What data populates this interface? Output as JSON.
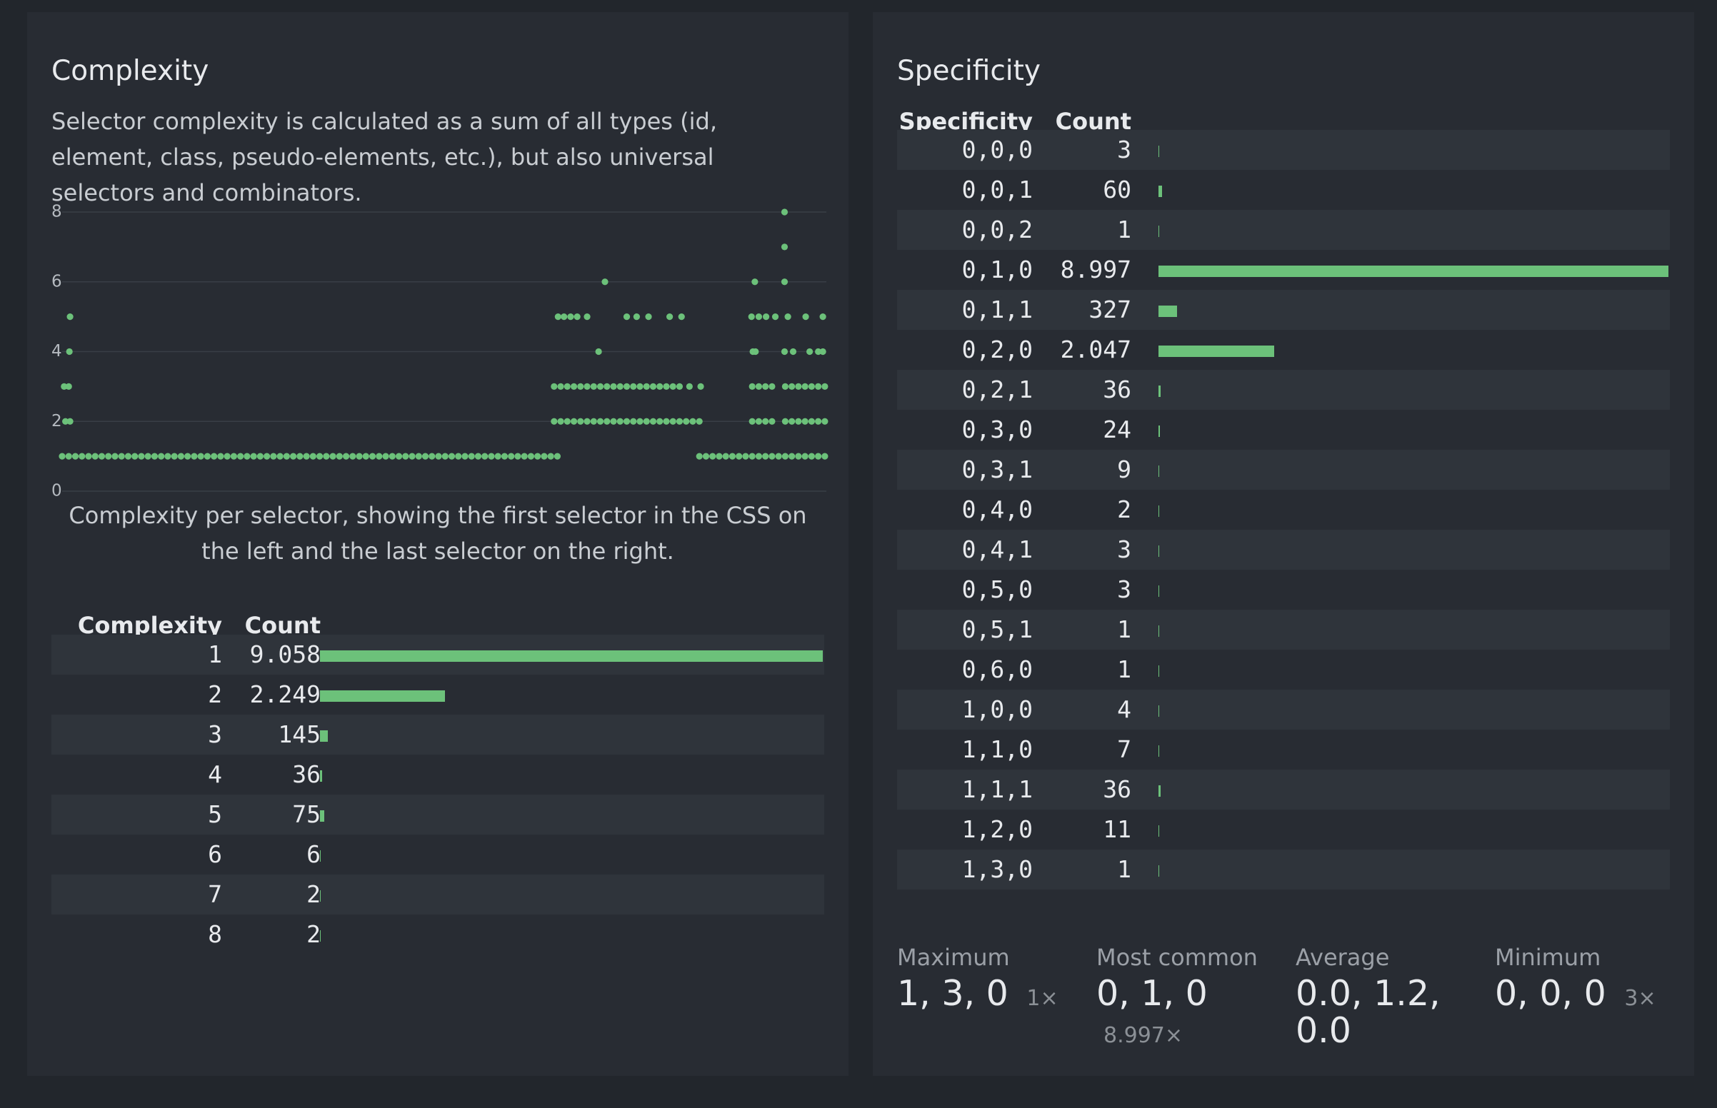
{
  "complexity": {
    "title": "Complexity",
    "description": "Selector complexity is calculated as a sum of all types (id, element, class, pseudo-elements, etc.), but also universal selectors and combinators.",
    "chart": {
      "type": "scatter",
      "xlim": [
        0,
        11573
      ],
      "ylim": [
        0,
        8
      ],
      "yticks": [
        0,
        2,
        4,
        6,
        8
      ],
      "grid": true,
      "color": "#6cc17a",
      "points": [
        [
          0,
          1
        ],
        [
          100,
          1
        ],
        [
          200,
          1
        ],
        [
          300,
          1
        ],
        [
          400,
          1
        ],
        [
          500,
          1
        ],
        [
          600,
          1
        ],
        [
          700,
          1
        ],
        [
          800,
          1
        ],
        [
          900,
          1
        ],
        [
          1000,
          1
        ],
        [
          1100,
          1
        ],
        [
          1200,
          1
        ],
        [
          1300,
          1
        ],
        [
          1400,
          1
        ],
        [
          1500,
          1
        ],
        [
          1600,
          1
        ],
        [
          1700,
          1
        ],
        [
          1800,
          1
        ],
        [
          1900,
          1
        ],
        [
          2000,
          1
        ],
        [
          2100,
          1
        ],
        [
          2200,
          1
        ],
        [
          2300,
          1
        ],
        [
          2400,
          1
        ],
        [
          2500,
          1
        ],
        [
          2600,
          1
        ],
        [
          2700,
          1
        ],
        [
          2800,
          1
        ],
        [
          2900,
          1
        ],
        [
          3000,
          1
        ],
        [
          3100,
          1
        ],
        [
          3200,
          1
        ],
        [
          3300,
          1
        ],
        [
          3400,
          1
        ],
        [
          3500,
          1
        ],
        [
          3600,
          1
        ],
        [
          3700,
          1
        ],
        [
          3800,
          1
        ],
        [
          3900,
          1
        ],
        [
          4000,
          1
        ],
        [
          4100,
          1
        ],
        [
          4200,
          1
        ],
        [
          4300,
          1
        ],
        [
          4400,
          1
        ],
        [
          4500,
          1
        ],
        [
          4600,
          1
        ],
        [
          4700,
          1
        ],
        [
          4800,
          1
        ],
        [
          4900,
          1
        ],
        [
          5000,
          1
        ],
        [
          5100,
          1
        ],
        [
          5200,
          1
        ],
        [
          5300,
          1
        ],
        [
          5400,
          1
        ],
        [
          5500,
          1
        ],
        [
          5600,
          1
        ],
        [
          5700,
          1
        ],
        [
          5800,
          1
        ],
        [
          5900,
          1
        ],
        [
          6000,
          1
        ],
        [
          6100,
          1
        ],
        [
          6200,
          1
        ],
        [
          6300,
          1
        ],
        [
          6400,
          1
        ],
        [
          6500,
          1
        ],
        [
          6600,
          1
        ],
        [
          6700,
          1
        ],
        [
          6800,
          1
        ],
        [
          6900,
          1
        ],
        [
          7000,
          1
        ],
        [
          7100,
          1
        ],
        [
          7200,
          1
        ],
        [
          7300,
          1
        ],
        [
          7400,
          1
        ],
        [
          7500,
          1
        ],
        [
          9650,
          1
        ],
        [
          9750,
          1
        ],
        [
          9850,
          1
        ],
        [
          9950,
          1
        ],
        [
          10050,
          1
        ],
        [
          10150,
          1
        ],
        [
          10250,
          1
        ],
        [
          10350,
          1
        ],
        [
          10450,
          1
        ],
        [
          10550,
          1
        ],
        [
          10650,
          1
        ],
        [
          10750,
          1
        ],
        [
          10850,
          1
        ],
        [
          10950,
          1
        ],
        [
          11050,
          1
        ],
        [
          11150,
          1
        ],
        [
          11250,
          1
        ],
        [
          11350,
          1
        ],
        [
          11450,
          1
        ],
        [
          11550,
          1
        ],
        [
          7450,
          2
        ],
        [
          7550,
          2
        ],
        [
          7650,
          2
        ],
        [
          7750,
          2
        ],
        [
          7850,
          2
        ],
        [
          7950,
          2
        ],
        [
          8050,
          2
        ],
        [
          8150,
          2
        ],
        [
          8250,
          2
        ],
        [
          8350,
          2
        ],
        [
          8450,
          2
        ],
        [
          8550,
          2
        ],
        [
          8650,
          2
        ],
        [
          8750,
          2
        ],
        [
          8850,
          2
        ],
        [
          8950,
          2
        ],
        [
          9050,
          2
        ],
        [
          9150,
          2
        ],
        [
          9250,
          2
        ],
        [
          9350,
          2
        ],
        [
          9450,
          2
        ],
        [
          9550,
          2
        ],
        [
          9650,
          2
        ],
        [
          10450,
          2
        ],
        [
          10550,
          2
        ],
        [
          10650,
          2
        ],
        [
          10750,
          2
        ],
        [
          10950,
          2
        ],
        [
          11050,
          2
        ],
        [
          11150,
          2
        ],
        [
          11250,
          2
        ],
        [
          11350,
          2
        ],
        [
          11450,
          2
        ],
        [
          11550,
          2
        ],
        [
          7450,
          3
        ],
        [
          7550,
          3
        ],
        [
          7650,
          3
        ],
        [
          7750,
          3
        ],
        [
          7850,
          3
        ],
        [
          7950,
          3
        ],
        [
          8050,
          3
        ],
        [
          8150,
          3
        ],
        [
          8250,
          3
        ],
        [
          8350,
          3
        ],
        [
          8450,
          3
        ],
        [
          8550,
          3
        ],
        [
          8650,
          3
        ],
        [
          8750,
          3
        ],
        [
          8850,
          3
        ],
        [
          8950,
          3
        ],
        [
          9050,
          3
        ],
        [
          9150,
          3
        ],
        [
          9250,
          3
        ],
        [
          9350,
          3
        ],
        [
          9500,
          3
        ],
        [
          9670,
          3
        ],
        [
          10450,
          3
        ],
        [
          10550,
          3
        ],
        [
          10650,
          3
        ],
        [
          10750,
          3
        ],
        [
          10950,
          3
        ],
        [
          11050,
          3
        ],
        [
          11150,
          3
        ],
        [
          11250,
          3
        ],
        [
          11350,
          3
        ],
        [
          11450,
          3
        ],
        [
          11550,
          3
        ],
        [
          50,
          2
        ],
        [
          120,
          2
        ],
        [
          30,
          3
        ],
        [
          100,
          3
        ],
        [
          110,
          4
        ],
        [
          120,
          5
        ],
        [
          8124,
          4
        ],
        [
          10460,
          4
        ],
        [
          10500,
          4
        ],
        [
          10940,
          4
        ],
        [
          11070,
          4
        ],
        [
          11320,
          4
        ],
        [
          11450,
          4
        ],
        [
          11520,
          4
        ],
        [
          7510,
          5
        ],
        [
          7600,
          5
        ],
        [
          7700,
          5
        ],
        [
          7800,
          5
        ],
        [
          7950,
          5
        ],
        [
          8550,
          5
        ],
        [
          8700,
          5
        ],
        [
          8880,
          5
        ],
        [
          9200,
          5
        ],
        [
          9380,
          5
        ],
        [
          10440,
          5
        ],
        [
          10550,
          5
        ],
        [
          10660,
          5
        ],
        [
          10800,
          5
        ],
        [
          10990,
          5
        ],
        [
          11260,
          5
        ],
        [
          11520,
          5
        ],
        [
          8220,
          6
        ],
        [
          10490,
          6
        ],
        [
          10940,
          6
        ],
        [
          10940,
          7
        ],
        [
          10940,
          8
        ]
      ]
    },
    "caption": "Complexity per selector, showing the first selector in the CSS on the left and the last selector on the right.",
    "table": {
      "headers": [
        "Complexity",
        "Count"
      ],
      "color": "#6cc17a",
      "categories": [
        1,
        2,
        3,
        4,
        5,
        6,
        7,
        8
      ],
      "values": [
        9058,
        2249,
        145,
        36,
        75,
        6,
        2,
        2
      ],
      "value_labels": [
        "9.058",
        "2.249",
        "145",
        "36",
        "75",
        "6",
        "2",
        "2"
      ]
    }
  },
  "specificity": {
    "title": "Specificity",
    "table": {
      "headers": [
        "Specificity",
        "Count"
      ],
      "color": "#6cc17a",
      "categories": [
        "0,0,0",
        "0,0,1",
        "0,0,2",
        "0,1,0",
        "0,1,1",
        "0,2,0",
        "0,2,1",
        "0,3,0",
        "0,3,1",
        "0,4,0",
        "0,4,1",
        "0,5,0",
        "0,5,1",
        "0,6,0",
        "1,0,0",
        "1,1,0",
        "1,1,1",
        "1,2,0",
        "1,3,0"
      ],
      "values": [
        3,
        60,
        1,
        8997,
        327,
        2047,
        36,
        24,
        9,
        2,
        3,
        3,
        1,
        1,
        4,
        7,
        36,
        11,
        1
      ],
      "value_labels": [
        "3",
        "60",
        "1",
        "8.997",
        "327",
        "2.047",
        "36",
        "24",
        "9",
        "2",
        "3",
        "3",
        "1",
        "1",
        "4",
        "7",
        "36",
        "11",
        "1"
      ]
    },
    "stats": [
      {
        "label": "Maximum",
        "value": "1, 3, 0",
        "count": "1×"
      },
      {
        "label": "Most common",
        "value": "0, 1, 0",
        "count": "8.997×"
      },
      {
        "label": "Average",
        "value": "0.0, 1.2, 0.0"
      },
      {
        "label": "Minimum",
        "value": "0, 0, 0",
        "count": "3×"
      }
    ]
  }
}
